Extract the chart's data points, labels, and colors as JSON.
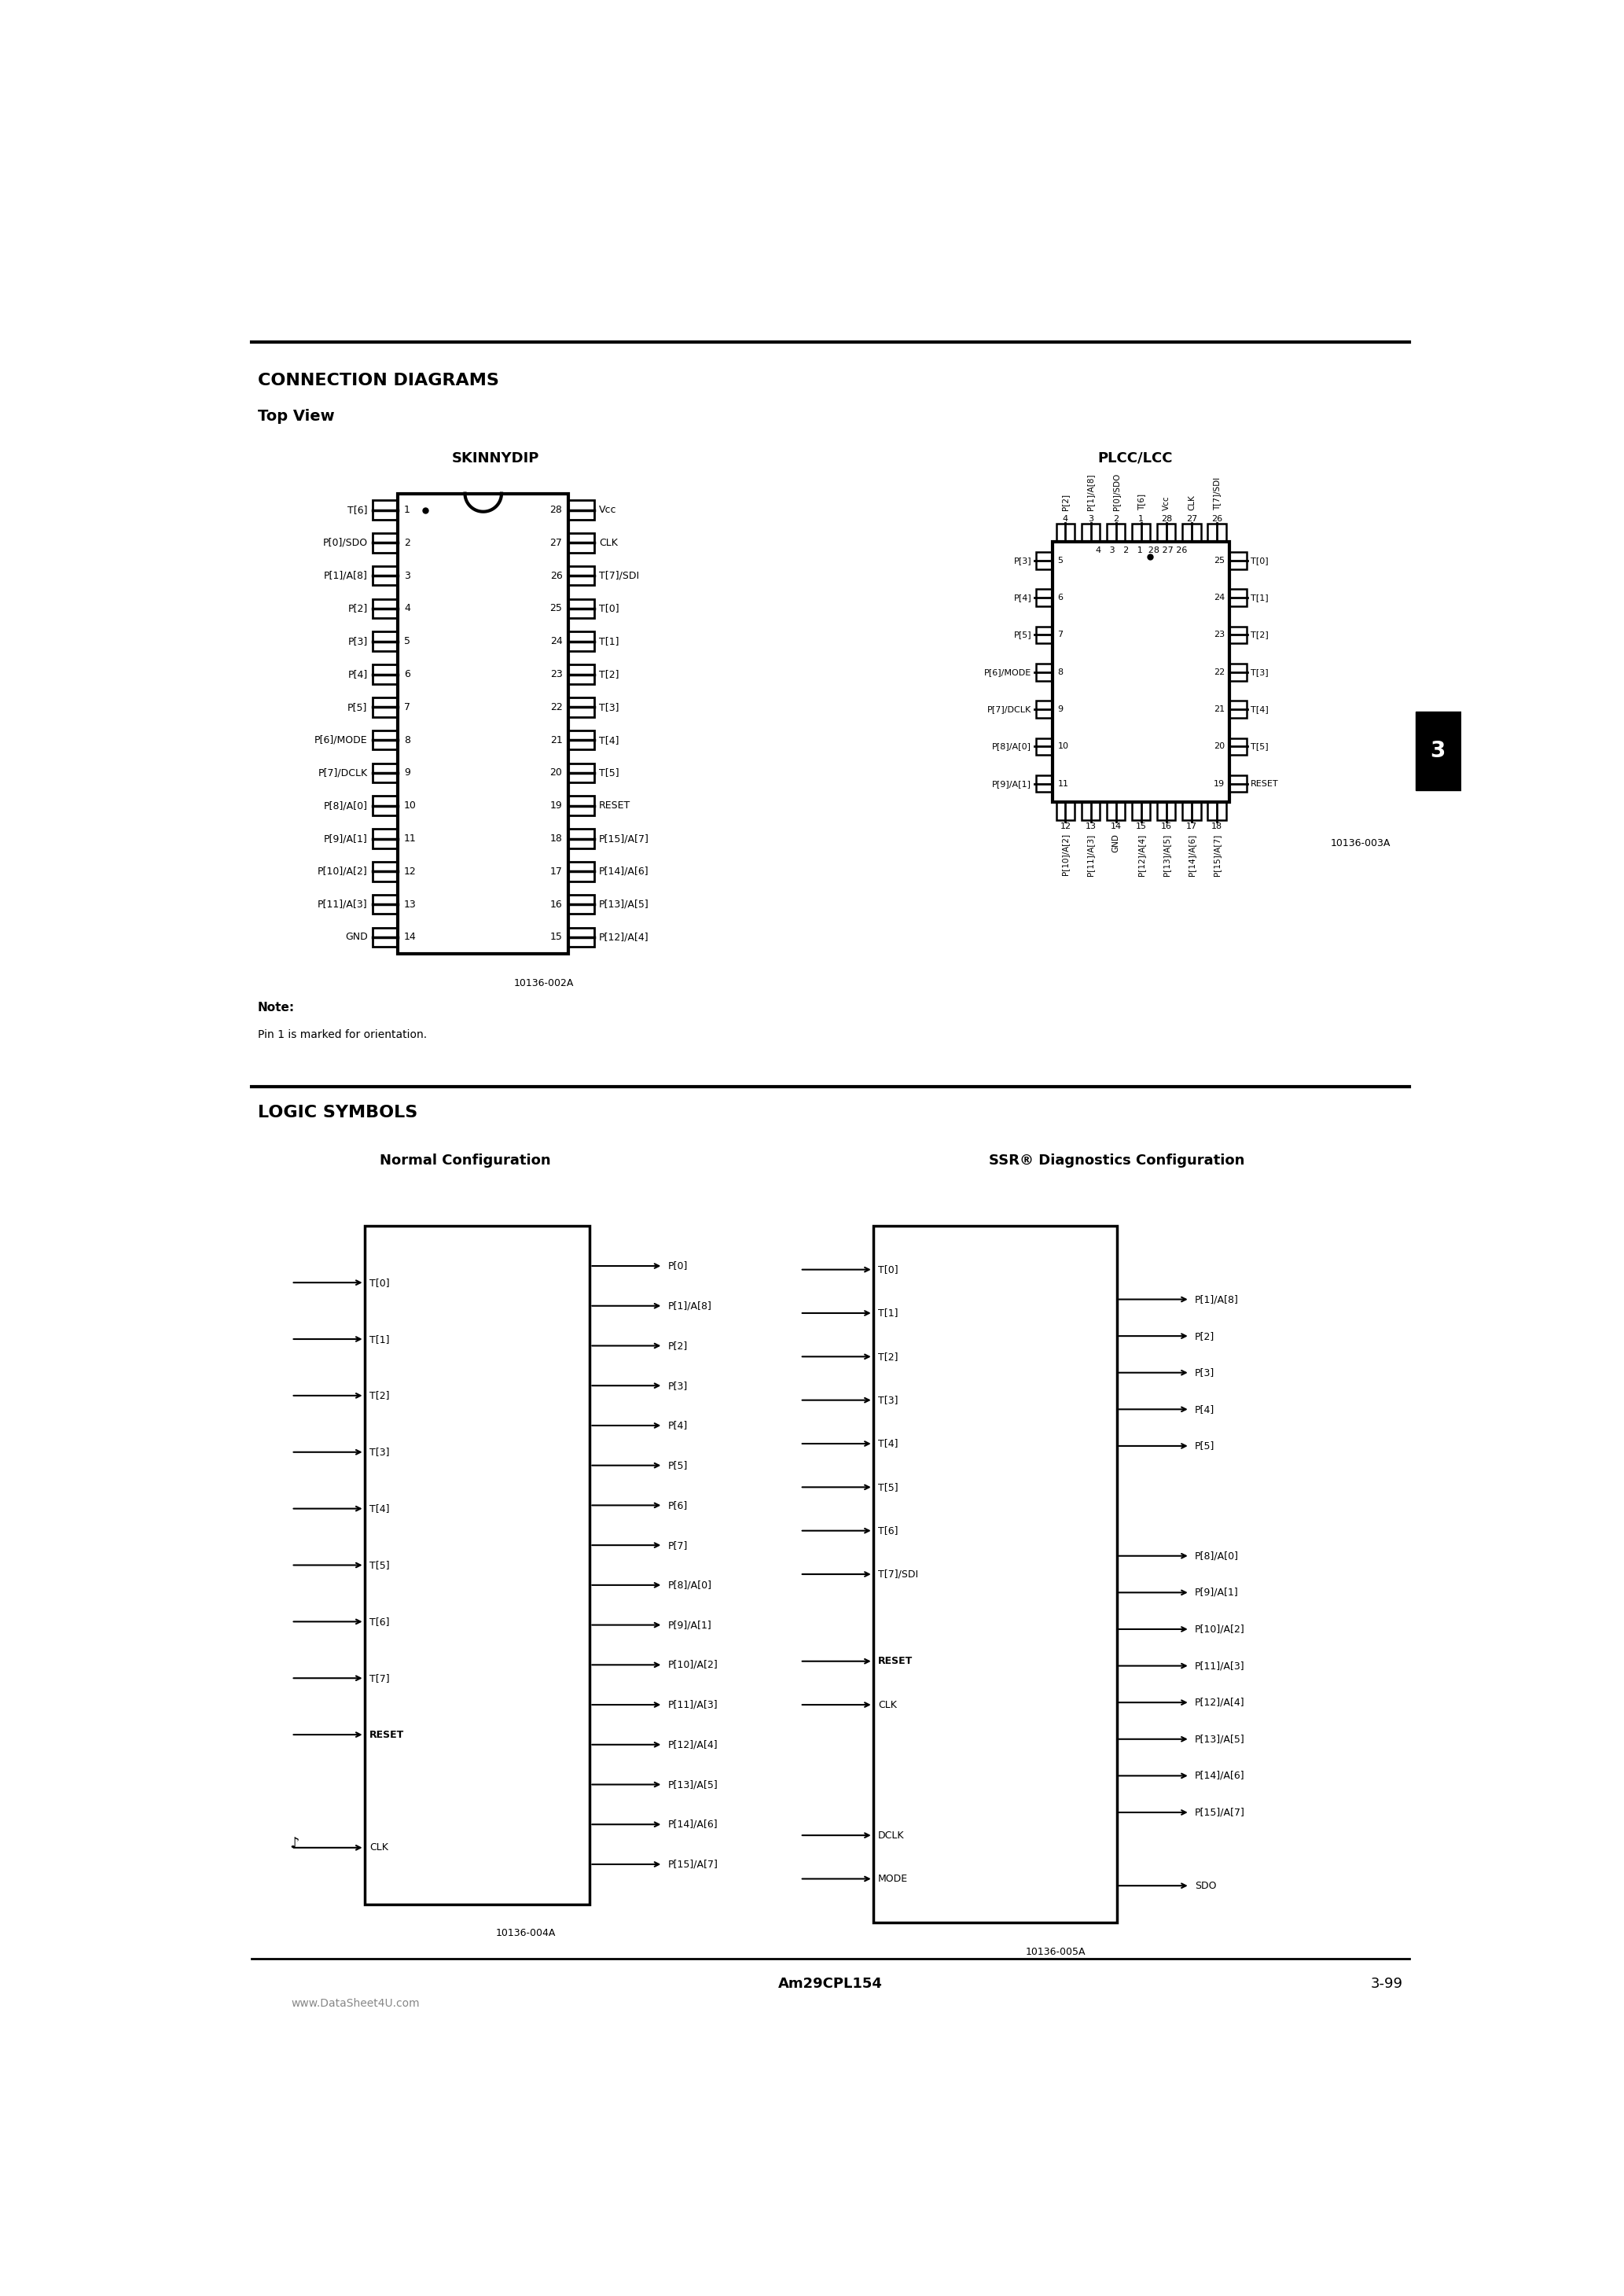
{
  "bg_color": "#ffffff",
  "section1_title": "CONNECTION DIAGRAMS",
  "section1_subtitle": "Top View",
  "skinnydip_title": "SKINNYDIP",
  "plcclcc_title": "PLCC/LCC",
  "section2_title": "LOGIC SYMBOLS",
  "normal_config_title": "Normal Configuration",
  "ssr_config_title": "SSR® Diagnostics Configuration",
  "footer_left": "Am29CPL154",
  "footer_right": "3-99",
  "footer_url": "www.DataSheet4U.com",
  "note_bold": "Note:",
  "note_text": "Pin 1 is marked for orientation.",
  "ref_code1": "10136-002A",
  "ref_code2": "10136-003A",
  "ref_code3": "10136-004A",
  "ref_code4": "10136-005A",
  "dip_left_pins": [
    [
      "T[6]",
      1
    ],
    [
      "P[0]/SDO",
      2
    ],
    [
      "P[1]/A[8]",
      3
    ],
    [
      "P[2]",
      4
    ],
    [
      "P[3]",
      5
    ],
    [
      "P[4]",
      6
    ],
    [
      "P[5]",
      7
    ],
    [
      "P[6]/MODE",
      8
    ],
    [
      "P[7]/DCLK",
      9
    ],
    [
      "P[8]/A[0]",
      10
    ],
    [
      "P[9]/A[1]",
      11
    ],
    [
      "P[10]/A[2]",
      12
    ],
    [
      "P[11]/A[3]",
      13
    ],
    [
      "GND",
      14
    ]
  ],
  "dip_right_pins": [
    [
      "Vcc",
      28
    ],
    [
      "CLK",
      27
    ],
    [
      "T[7]/SDI",
      26
    ],
    [
      "T[0]",
      25
    ],
    [
      "T[1]",
      24
    ],
    [
      "T[2]",
      23
    ],
    [
      "T[3]",
      22
    ],
    [
      "T[4]",
      21
    ],
    [
      "T[5]",
      20
    ],
    [
      "RESET",
      19
    ],
    [
      "P[15]/A[7]",
      18
    ],
    [
      "P[14]/A[6]",
      17
    ],
    [
      "P[13]/A[5]",
      16
    ],
    [
      "P[12]/A[4]",
      15
    ]
  ],
  "plcc_top_pins": [
    "P[2]",
    "P[1]/A[8]",
    "P[0]/SDO",
    "T[6]",
    "Vcc",
    "CLK",
    "T[7]/SDI"
  ],
  "plcc_top_nums": [
    4,
    3,
    2,
    1,
    28,
    27,
    26
  ],
  "plcc_left_pins": [
    [
      "P[3]",
      5
    ],
    [
      "P[4]",
      6
    ],
    [
      "P[5]",
      7
    ],
    [
      "P[6]/MODE",
      8
    ],
    [
      "P[7]/DCLK",
      9
    ],
    [
      "P[8]/A[0]",
      10
    ],
    [
      "P[9]/A[1]",
      11
    ]
  ],
  "plcc_right_pins": [
    [
      "T[0]",
      25
    ],
    [
      "T[1]",
      24
    ],
    [
      "T[2]",
      23
    ],
    [
      "T[3]",
      22
    ],
    [
      "T[4]",
      21
    ],
    [
      "T[5]",
      20
    ],
    [
      "RESET",
      19
    ]
  ],
  "plcc_bottom_pins": [
    "P[10]/A[2]",
    "P[11]/A[3]",
    "GND",
    "P[12]/A[4]",
    "P[13]/A[5]",
    "P[14]/A[6]",
    "P[15]/A[7]"
  ],
  "plcc_bottom_nums": [
    12,
    13,
    14,
    15,
    16,
    17,
    18
  ],
  "normal_left_signals": [
    "T[0]",
    "T[1]",
    "T[2]",
    "T[3]",
    "T[4]",
    "T[5]",
    "T[6]",
    "T[7]",
    "RESET",
    "",
    "CLK"
  ],
  "normal_right_signals": [
    "P[0]",
    "P[1]/A[8]",
    "P[2]",
    "P[3]",
    "P[4]",
    "P[5]",
    "P[6]",
    "P[7]",
    "P[8]/A[0]",
    "P[9]/A[1]",
    "P[10]/A[2]",
    "P[11]/A[3]",
    "P[12]/A[4]",
    "P[13]/A[5]",
    "P[14]/A[6]",
    "P[15]/A[7]"
  ],
  "ssr_left_signals": [
    "T[0]",
    "T[1]",
    "T[2]",
    "T[3]",
    "T[4]",
    "T[5]",
    "T[6]",
    "T[7]/SDI",
    "",
    "RESET",
    "CLK",
    "",
    "",
    "DCLK",
    "MODE"
  ],
  "ssr_right_signals": [
    "",
    "P[1]/A[8]",
    "P[2]",
    "P[3]",
    "P[4]",
    "P[5]",
    "",
    "",
    "P[8]/A[0]",
    "P[9]/A[1]",
    "P[10]/A[2]",
    "P[11]/A[3]",
    "P[12]/A[4]",
    "P[13]/A[5]",
    "P[14]/A[6]",
    "P[15]/A[7]",
    "",
    "SDO"
  ]
}
